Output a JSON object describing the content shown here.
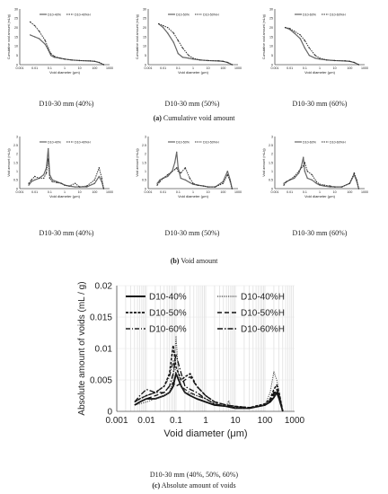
{
  "captions": {
    "a_letter": "(a)",
    "a_text": "Cumulative void amount",
    "b_letter": "(b)",
    "b_text": "Void amount",
    "c_panel": "D10-30 mm (40%, 50%, 60%)",
    "c_letter": "(c)",
    "c_text": "Absolute amount of voids"
  },
  "chart_data": [
    {
      "type": "line",
      "panel": "a1",
      "subtitle": "D10-30 mm (40%)",
      "xlabel": "Void diameter (μm)",
      "ylabel": "Cumulative void amount (mL/g)",
      "xscale": "log",
      "xlim": [
        0.001,
        1000
      ],
      "ylim": [
        0,
        30
      ],
      "yticks": [
        0,
        5,
        10,
        15,
        20,
        25,
        30
      ],
      "xticks": [
        "0.001",
        "0.01",
        "0.1",
        "1",
        "10",
        "100",
        "1000"
      ],
      "legend": "top-center",
      "series": [
        {
          "name": "D10-40%",
          "x": [
            0.005,
            0.01,
            0.02,
            0.05,
            0.08,
            0.12,
            0.2,
            0.5,
            1,
            3,
            10,
            50,
            100,
            200,
            400
          ],
          "y": [
            16,
            15,
            14,
            11,
            8,
            5,
            4,
            3.5,
            3,
            2.5,
            2.2,
            2,
            1.8,
            1.2,
            0
          ]
        },
        {
          "name": "D10-40%H",
          "x": [
            0.005,
            0.01,
            0.02,
            0.05,
            0.08,
            0.12,
            0.2,
            0.5,
            1,
            3,
            10,
            50,
            100,
            200,
            400
          ],
          "y": [
            23,
            21,
            18,
            13,
            9,
            6,
            4.5,
            3.5,
            3,
            2.5,
            2.2,
            2,
            1.8,
            1.2,
            0
          ]
        }
      ]
    },
    {
      "type": "line",
      "panel": "a2",
      "subtitle": "D10-30 mm (50%)",
      "xlabel": "Void diameter (μm)",
      "ylabel": "Cumulative void amount (mL/g)",
      "xscale": "log",
      "xlim": [
        0.001,
        1000
      ],
      "ylim": [
        0,
        30
      ],
      "yticks": [
        0,
        5,
        10,
        15,
        20,
        25,
        30
      ],
      "xticks": [
        "0.001",
        "0.01",
        "0.1",
        "1",
        "10",
        "100",
        "1000"
      ],
      "legend": "top-center",
      "series": [
        {
          "name": "D10-50%",
          "x": [
            0.005,
            0.01,
            0.02,
            0.05,
            0.1,
            0.2,
            0.5,
            1,
            3,
            10,
            50,
            100,
            200,
            400
          ],
          "y": [
            22,
            20,
            17,
            12,
            6,
            4,
            3.5,
            3,
            2.5,
            2.2,
            2,
            1.8,
            1.2,
            0
          ]
        },
        {
          "name": "D10-50%H",
          "x": [
            0.005,
            0.01,
            0.02,
            0.05,
            0.1,
            0.2,
            0.5,
            1,
            3,
            10,
            50,
            100,
            200,
            400
          ],
          "y": [
            22,
            21,
            20,
            17,
            13,
            9,
            5,
            3.5,
            2.5,
            2.2,
            2,
            1.8,
            1.2,
            0
          ]
        }
      ]
    },
    {
      "type": "line",
      "panel": "a3",
      "subtitle": "D10-30 mm (60%)",
      "xlabel": "Void diameter (μm)",
      "ylabel": "Cumulative void amount (mL/g)",
      "xscale": "log",
      "xlim": [
        0.001,
        1000
      ],
      "ylim": [
        0,
        30
      ],
      "yticks": [
        0,
        5,
        10,
        15,
        20,
        25,
        30
      ],
      "xticks": [
        "0.001",
        "0.01",
        "0.1",
        "1",
        "10",
        "100",
        "1000"
      ],
      "legend": "top-center",
      "series": [
        {
          "name": "D10-60%",
          "x": [
            0.005,
            0.01,
            0.02,
            0.05,
            0.1,
            0.2,
            0.5,
            1,
            3,
            10,
            50,
            100,
            200,
            400
          ],
          "y": [
            20,
            19,
            17,
            14,
            9,
            5,
            3.5,
            3,
            2.5,
            2.2,
            2,
            1.8,
            1.2,
            0
          ]
        },
        {
          "name": "D10-60%H",
          "x": [
            0.005,
            0.01,
            0.02,
            0.05,
            0.1,
            0.2,
            0.5,
            1,
            3,
            10,
            50,
            100,
            200,
            400
          ],
          "y": [
            20,
            19.5,
            18,
            16,
            13,
            9,
            5,
            3.5,
            2.5,
            2.2,
            2,
            1.8,
            1.2,
            0
          ]
        }
      ]
    },
    {
      "type": "line",
      "panel": "b1",
      "subtitle": "D10-30 mm (40%)",
      "xlabel": "Void diameter (μm)",
      "ylabel": "Void amount (mL/g)",
      "xscale": "log",
      "xlim": [
        0.001,
        1000
      ],
      "ylim": [
        0,
        3
      ],
      "yticks": [
        0,
        0.5,
        1,
        1.5,
        2,
        2.5,
        3
      ],
      "xticks": [
        "0.001",
        "0.01",
        "0.1",
        "1",
        "10",
        "100",
        "1000"
      ],
      "legend": "top-center",
      "series": [
        {
          "name": "D10-40%",
          "x": [
            0.004,
            0.006,
            0.01,
            0.02,
            0.04,
            0.06,
            0.08,
            0.1,
            0.15,
            0.3,
            0.6,
            1,
            2,
            5,
            10,
            30,
            100,
            200,
            300,
            400
          ],
          "y": [
            0.2,
            0.4,
            0.5,
            0.6,
            0.8,
            1.2,
            2.3,
            0.8,
            0.5,
            0.4,
            0.3,
            0.2,
            0.15,
            0.1,
            0.1,
            0.1,
            0.3,
            0.7,
            0.4,
            0
          ]
        },
        {
          "name": "D10-40%H",
          "x": [
            0.004,
            0.006,
            0.01,
            0.02,
            0.04,
            0.06,
            0.08,
            0.1,
            0.15,
            0.3,
            0.6,
            1,
            2,
            5,
            10,
            30,
            100,
            200,
            300,
            400
          ],
          "y": [
            0.3,
            0.5,
            0.7,
            0.6,
            0.6,
            0.9,
            1.7,
            0.6,
            0.4,
            0.35,
            0.3,
            0.2,
            0.15,
            0.3,
            0.1,
            0.15,
            0.5,
            1.2,
            0.6,
            0
          ]
        }
      ]
    },
    {
      "type": "line",
      "panel": "b2",
      "subtitle": "D10-30 mm (50%)",
      "xlabel": "Void diameter (μm)",
      "ylabel": "Void amount (mL/g)",
      "xscale": "log",
      "xlim": [
        0.001,
        1000
      ],
      "ylim": [
        0,
        3
      ],
      "yticks": [
        0,
        0.5,
        1,
        1.5,
        2,
        2.5,
        3
      ],
      "xticks": [
        "0.001",
        "0.01",
        "0.1",
        "1",
        "10",
        "100",
        "1000"
      ],
      "legend": "top-center",
      "series": [
        {
          "name": "D10-50%",
          "x": [
            0.004,
            0.006,
            0.01,
            0.02,
            0.04,
            0.06,
            0.08,
            0.1,
            0.15,
            0.3,
            0.6,
            1,
            2,
            5,
            10,
            30,
            100,
            200,
            300,
            400
          ],
          "y": [
            0.3,
            0.5,
            0.6,
            0.7,
            1.0,
            1.5,
            2.1,
            1.2,
            0.6,
            0.5,
            0.35,
            0.25,
            0.2,
            0.15,
            0.1,
            0.1,
            0.4,
            1.0,
            0.5,
            0
          ]
        },
        {
          "name": "D10-50%H",
          "x": [
            0.004,
            0.006,
            0.01,
            0.02,
            0.04,
            0.06,
            0.08,
            0.1,
            0.15,
            0.3,
            0.6,
            1,
            2,
            5,
            10,
            30,
            100,
            200,
            300,
            400
          ],
          "y": [
            0.2,
            0.4,
            0.6,
            0.8,
            1.0,
            1.1,
            1.2,
            1.0,
            0.9,
            1.2,
            0.6,
            0.3,
            0.2,
            0.15,
            0.1,
            0.1,
            0.3,
            0.8,
            0.4,
            0
          ]
        }
      ]
    },
    {
      "type": "line",
      "panel": "b3",
      "subtitle": "D10-30 mm (60%)",
      "xlabel": "Void diameter (μm)",
      "ylabel": "Void amount (mL/g)",
      "xscale": "log",
      "xlim": [
        0.001,
        1000
      ],
      "ylim": [
        0,
        3
      ],
      "yticks": [
        0,
        0.5,
        1,
        1.5,
        2,
        2.5,
        3
      ],
      "xticks": [
        "0.001",
        "0.01",
        "0.1",
        "1",
        "10",
        "100",
        "1000"
      ],
      "legend": "top-center",
      "series": [
        {
          "name": "D10-60%",
          "x": [
            0.004,
            0.006,
            0.01,
            0.02,
            0.04,
            0.06,
            0.08,
            0.1,
            0.15,
            0.3,
            0.6,
            1,
            2,
            5,
            10,
            30,
            100,
            200,
            300,
            400
          ],
          "y": [
            0.3,
            0.4,
            0.5,
            0.6,
            0.9,
            1.3,
            1.8,
            1.0,
            0.6,
            0.5,
            0.3,
            0.2,
            0.15,
            0.1,
            0.1,
            0.1,
            0.3,
            0.8,
            0.4,
            0
          ]
        },
        {
          "name": "D10-60%H",
          "x": [
            0.004,
            0.006,
            0.01,
            0.02,
            0.04,
            0.06,
            0.08,
            0.1,
            0.15,
            0.3,
            0.6,
            1,
            2,
            5,
            10,
            30,
            100,
            200,
            300,
            400
          ],
          "y": [
            0.2,
            0.4,
            0.5,
            0.7,
            1.0,
            1.2,
            1.3,
            1.5,
            1.0,
            0.8,
            0.4,
            0.25,
            0.2,
            0.15,
            0.1,
            0.1,
            0.3,
            0.9,
            0.5,
            0
          ]
        }
      ]
    },
    {
      "type": "line",
      "panel": "c",
      "subtitle": "D10-30 mm (40%, 50%, 60%)",
      "xlabel": "Void diameter (μm)",
      "ylabel": "Absolute amount of voids (mL / g)",
      "xscale": "log",
      "xlim": [
        0.001,
        1000
      ],
      "ylim": [
        0,
        0.02
      ],
      "yticks": [
        "0",
        "0.005",
        "0.01",
        "0.015",
        "0.02"
      ],
      "xticks": [
        "0.001",
        "0.01",
        "0.1",
        "1",
        "10",
        "100",
        "1000"
      ],
      "grid": true,
      "legend": "top",
      "series": [
        {
          "name": "D10-40%",
          "x": [
            0.004,
            0.006,
            0.01,
            0.02,
            0.04,
            0.06,
            0.08,
            0.1,
            0.15,
            0.2,
            0.3,
            0.5,
            1,
            2,
            5,
            10,
            30,
            100,
            150,
            200,
            250,
            300,
            400
          ],
          "y": [
            0.001,
            0.0015,
            0.002,
            0.002,
            0.0025,
            0.003,
            0.004,
            0.006,
            0.004,
            0.003,
            0.0025,
            0.002,
            0.0015,
            0.001,
            0.0008,
            0.0005,
            0.0005,
            0.001,
            0.0015,
            0.0022,
            0.003,
            0.002,
            0
          ]
        },
        {
          "name": "D10-40%H",
          "x": [
            0.004,
            0.006,
            0.01,
            0.02,
            0.04,
            0.06,
            0.08,
            0.1,
            0.12,
            0.15,
            0.2,
            0.3,
            0.5,
            1,
            2,
            5,
            6,
            7,
            10,
            30,
            100,
            150,
            200,
            250,
            300,
            400
          ],
          "y": [
            0.001,
            0.0012,
            0.0015,
            0.002,
            0.0025,
            0.003,
            0.005,
            0.012,
            0.006,
            0.004,
            0.003,
            0.0028,
            0.0025,
            0.002,
            0.0012,
            0.0008,
            0.0017,
            0.0008,
            0.0005,
            0.0005,
            0.001,
            0.003,
            0.0063,
            0.005,
            0.003,
            0
          ]
        },
        {
          "name": "D10-50%",
          "x": [
            0.004,
            0.006,
            0.01,
            0.02,
            0.04,
            0.06,
            0.08,
            0.1,
            0.15,
            0.2,
            0.3,
            0.5,
            1,
            2,
            5,
            10,
            30,
            100,
            150,
            200,
            250,
            300,
            400
          ],
          "y": [
            0.0015,
            0.002,
            0.0025,
            0.003,
            0.004,
            0.006,
            0.0105,
            0.007,
            0.005,
            0.0055,
            0.006,
            0.004,
            0.0025,
            0.0015,
            0.001,
            0.0008,
            0.0006,
            0.0012,
            0.002,
            0.0035,
            0.0042,
            0.003,
            0
          ]
        },
        {
          "name": "D10-50%H",
          "x": [
            0.004,
            0.006,
            0.01,
            0.02,
            0.04,
            0.06,
            0.08,
            0.1,
            0.15,
            0.2,
            0.3,
            0.5,
            1,
            2,
            5,
            10,
            30,
            100,
            150,
            200,
            250,
            300,
            400
          ],
          "y": [
            0.001,
            0.0015,
            0.002,
            0.0025,
            0.003,
            0.004,
            0.0045,
            0.004,
            0.0045,
            0.005,
            0.0055,
            0.004,
            0.0025,
            0.0015,
            0.001,
            0.0008,
            0.0006,
            0.001,
            0.0018,
            0.003,
            0.0035,
            0.0025,
            0
          ]
        },
        {
          "name": "D10-60%",
          "x": [
            0.004,
            0.006,
            0.01,
            0.02,
            0.04,
            0.06,
            0.08,
            0.1,
            0.15,
            0.2,
            0.3,
            0.5,
            1,
            2,
            5,
            10,
            30,
            100,
            150,
            200,
            250,
            300,
            400
          ],
          "y": [
            0.0015,
            0.002,
            0.0025,
            0.003,
            0.004,
            0.0055,
            0.008,
            0.006,
            0.004,
            0.0035,
            0.003,
            0.0025,
            0.002,
            0.0012,
            0.0008,
            0.0006,
            0.0005,
            0.001,
            0.0016,
            0.0025,
            0.0032,
            0.0022,
            0
          ]
        },
        {
          "name": "D10-60%H",
          "x": [
            0.004,
            0.006,
            0.01,
            0.02,
            0.04,
            0.06,
            0.08,
            0.1,
            0.15,
            0.2,
            0.3,
            0.5,
            1,
            2,
            5,
            10,
            30,
            100,
            150,
            200,
            250,
            300,
            400
          ],
          "y": [
            0.0015,
            0.0025,
            0.0035,
            0.003,
            0.003,
            0.004,
            0.006,
            0.009,
            0.006,
            0.004,
            0.0035,
            0.003,
            0.002,
            0.0012,
            0.0008,
            0.0006,
            0.0005,
            0.001,
            0.0015,
            0.0028,
            0.0034,
            0.0024,
            0
          ]
        }
      ]
    }
  ]
}
